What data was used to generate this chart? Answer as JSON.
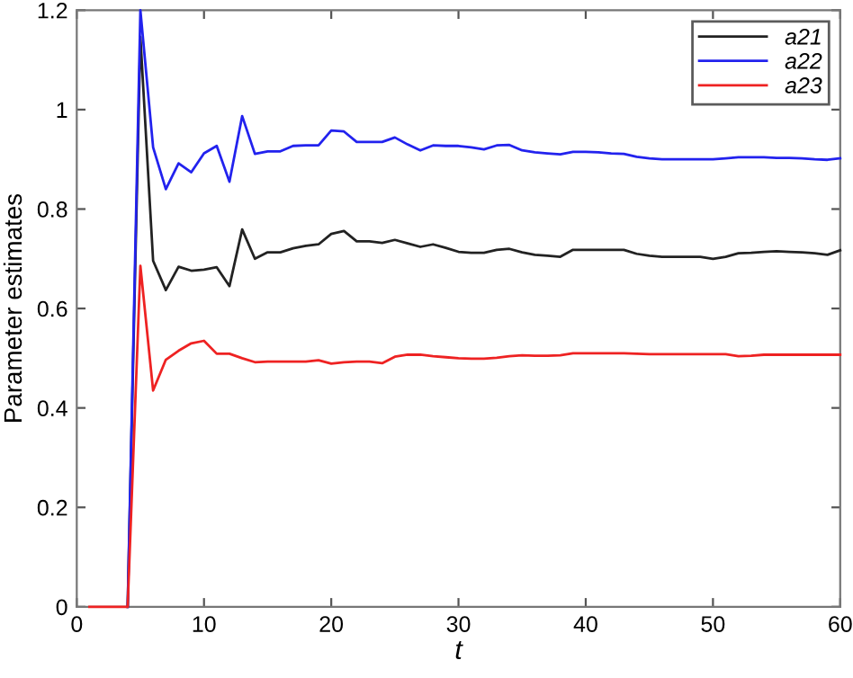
{
  "chart_data": {
    "type": "line",
    "xlabel": "t",
    "ylabel": "Parameter estimates",
    "x": [
      1,
      2,
      3,
      4,
      5,
      6,
      7,
      8,
      9,
      10,
      11,
      12,
      13,
      14,
      15,
      16,
      17,
      18,
      19,
      20,
      21,
      22,
      23,
      24,
      25,
      26,
      27,
      28,
      29,
      30,
      31,
      32,
      33,
      34,
      35,
      36,
      37,
      38,
      39,
      40,
      41,
      42,
      43,
      44,
      45,
      46,
      47,
      48,
      49,
      50,
      51,
      52,
      53,
      54,
      55,
      56,
      57,
      58,
      59,
      60
    ],
    "series": [
      {
        "name": "a21",
        "color": "#222222",
        "values": [
          null,
          null,
          null,
          0,
          1.146,
          0.696,
          0.637,
          0.684,
          0.676,
          0.678,
          0.683,
          0.645,
          0.759,
          0.7,
          0.713,
          0.713,
          0.721,
          0.726,
          0.729,
          0.75,
          0.756,
          0.735,
          0.735,
          0.732,
          0.738,
          0.731,
          0.724,
          0.729,
          0.722,
          0.714,
          0.712,
          0.712,
          0.718,
          0.72,
          0.713,
          0.708,
          0.706,
          0.704,
          0.718,
          0.718,
          0.718,
          0.718,
          0.718,
          0.71,
          0.706,
          0.704,
          0.704,
          0.704,
          0.704,
          0.7,
          0.704,
          0.711,
          0.712,
          0.714,
          0.715,
          0.714,
          0.713,
          0.711,
          0.708,
          0.717
        ]
      },
      {
        "name": "a22",
        "color": "#2222ee",
        "values": [
          null,
          null,
          null,
          0,
          1.2,
          0.924,
          0.84,
          0.892,
          0.874,
          0.912,
          0.927,
          0.855,
          0.987,
          0.911,
          0.916,
          0.916,
          0.927,
          0.928,
          0.928,
          0.958,
          0.956,
          0.935,
          0.935,
          0.935,
          0.944,
          0.93,
          0.918,
          0.928,
          0.927,
          0.927,
          0.924,
          0.92,
          0.928,
          0.929,
          0.918,
          0.914,
          0.912,
          0.91,
          0.915,
          0.915,
          0.914,
          0.912,
          0.911,
          0.905,
          0.902,
          0.9,
          0.9,
          0.9,
          0.9,
          0.9,
          0.902,
          0.904,
          0.904,
          0.904,
          0.903,
          0.903,
          0.902,
          0.9,
          0.899,
          0.902
        ]
      },
      {
        "name": "a23",
        "color": "#ee2222",
        "values": [
          0,
          0,
          0,
          0,
          0.686,
          0.435,
          0.497,
          0.515,
          0.53,
          0.535,
          0.509,
          0.509,
          0.5,
          0.492,
          0.493,
          0.493,
          0.493,
          0.493,
          0.496,
          0.489,
          0.492,
          0.493,
          0.493,
          0.49,
          0.503,
          0.507,
          0.507,
          0.504,
          0.502,
          0.5,
          0.499,
          0.499,
          0.501,
          0.504,
          0.506,
          0.505,
          0.505,
          0.506,
          0.51,
          0.51,
          0.51,
          0.51,
          0.51,
          0.509,
          0.508,
          0.508,
          0.508,
          0.508,
          0.508,
          0.508,
          0.508,
          0.504,
          0.505,
          0.507,
          0.507,
          0.507,
          0.507,
          0.507,
          0.507,
          0.507
        ]
      }
    ],
    "xlim": [
      0,
      60
    ],
    "xticks": [
      0,
      10,
      20,
      30,
      40,
      50,
      60
    ],
    "ylim": [
      0,
      1.2
    ],
    "yticks": [
      0,
      0.2,
      0.4,
      0.6,
      0.8,
      1,
      1.2
    ],
    "grid": false,
    "legend": "top right",
    "marker": "none",
    "line_style": "solid"
  }
}
